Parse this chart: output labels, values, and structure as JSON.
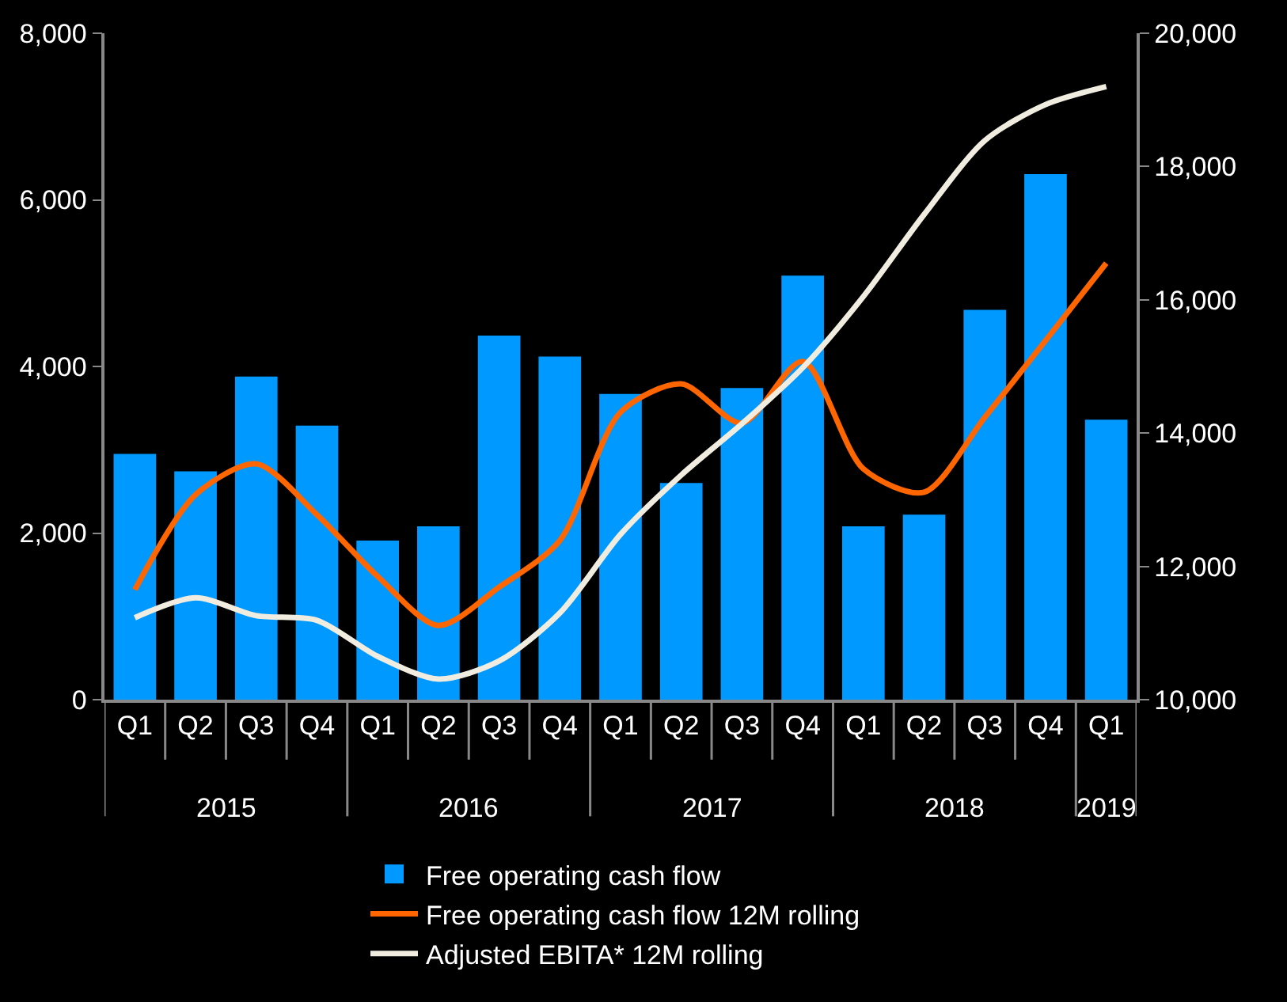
{
  "chart_data": {
    "type": "bar",
    "categories": [
      "Q1",
      "Q2",
      "Q3",
      "Q4",
      "Q1",
      "Q2",
      "Q3",
      "Q4",
      "Q1",
      "Q2",
      "Q3",
      "Q4",
      "Q1",
      "Q2",
      "Q3",
      "Q4",
      "Q1"
    ],
    "annotations": [
      "2015",
      "2016",
      "2017",
      "2018",
      "2019"
    ],
    "series": [
      {
        "name": "Free operating cash flow",
        "color": "#0099ff",
        "values": [
          2950,
          2740,
          3880,
          3290,
          1910,
          2080,
          4370,
          4120,
          3670,
          2600,
          3740,
          5090,
          2080,
          2220,
          4680,
          6310,
          3360
        ]
      },
      {
        "name": "Free operating cash flow 12M rolling",
        "type": "line",
        "color": "#ff6600",
        "values": [
          1320,
          2460,
          2830,
          2220,
          1480,
          890,
          1350,
          1910,
          3450,
          3790,
          3320,
          4060,
          2770,
          2490,
          3390,
          4310,
          5240
        ]
      },
      {
        "name": "Adjusted EBITA* 12M rolling",
        "type": "line",
        "axis": "y2",
        "color": "#f0ede0",
        "values": [
          11230,
          11530,
          11260,
          11190,
          10650,
          10310,
          10580,
          11300,
          12480,
          13370,
          14140,
          14980,
          16050,
          17280,
          18390,
          18930,
          19200
        ]
      }
    ],
    "ylim": [
      0,
      8000
    ],
    "yticks": [
      {
        "value": 0,
        "label": "0"
      },
      {
        "value": 2000,
        "label": "2,000"
      },
      {
        "value": 4000,
        "label": "4,000"
      },
      {
        "value": 6000,
        "label": "6,000"
      },
      {
        "value": 8000,
        "label": "8,000"
      }
    ],
    "y2lim": [
      10000,
      20000
    ],
    "y2ticks": [
      {
        "value": 10000,
        "label": "10,000"
      },
      {
        "value": 12000,
        "label": "12,000"
      },
      {
        "value": 14000,
        "label": "14,000"
      },
      {
        "value": 16000,
        "label": "16,000"
      },
      {
        "value": 18000,
        "label": "18,000"
      },
      {
        "value": 20000,
        "label": "20,000"
      }
    ],
    "grid": false,
    "legend": "bottom",
    "marker": "none",
    "line_style": "solid"
  }
}
